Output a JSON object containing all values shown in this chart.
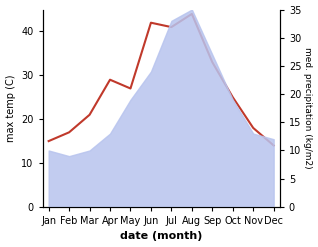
{
  "months": [
    "Jan",
    "Feb",
    "Mar",
    "Apr",
    "May",
    "Jun",
    "Jul",
    "Aug",
    "Sep",
    "Oct",
    "Nov",
    "Dec"
  ],
  "x": [
    0,
    1,
    2,
    3,
    4,
    5,
    6,
    7,
    8,
    9,
    10,
    11
  ],
  "temp": [
    15,
    17,
    21,
    29,
    27,
    42,
    41,
    44,
    33,
    25,
    18,
    14
  ],
  "precip": [
    10,
    9,
    10,
    13,
    19,
    24,
    33,
    35,
    27,
    19,
    13,
    12
  ],
  "temp_color": "#c0392b",
  "precip_fill_color": "#b8c4ee",
  "precip_fill_alpha": 0.85,
  "left_ylabel": "max temp (C)",
  "right_ylabel": "med. precipitation (kg/m2)",
  "xlabel": "date (month)",
  "left_ylim": [
    0,
    45
  ],
  "right_ylim": [
    0,
    35
  ],
  "left_yticks": [
    0,
    10,
    20,
    30,
    40
  ],
  "right_yticks": [
    0,
    5,
    10,
    15,
    20,
    25,
    30,
    35
  ],
  "bg_color": "#ffffff"
}
